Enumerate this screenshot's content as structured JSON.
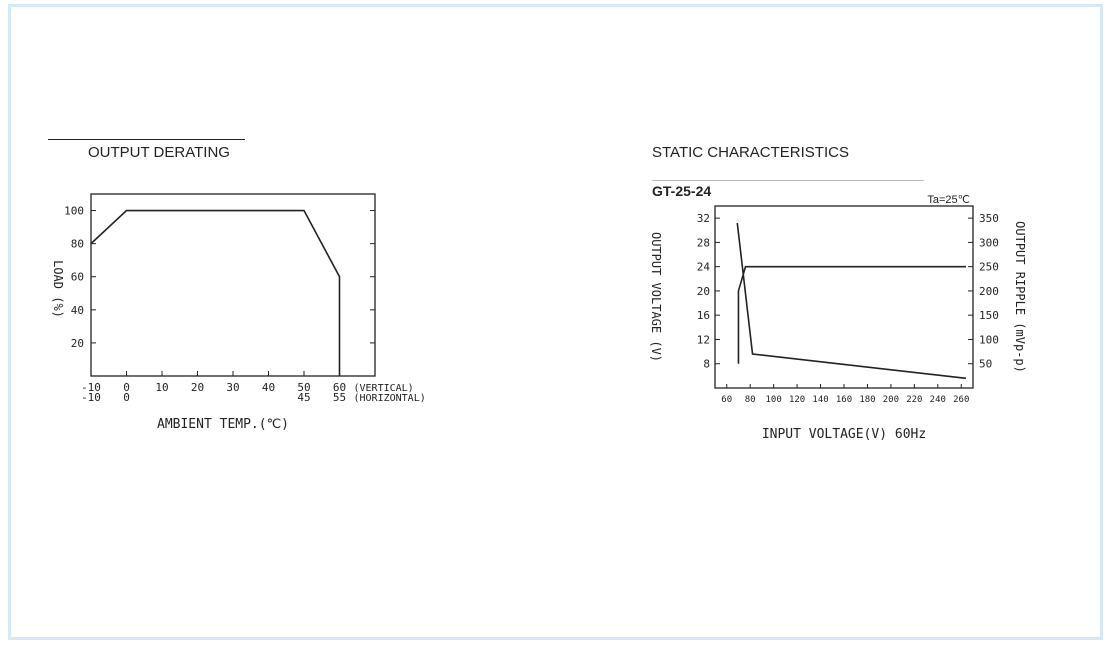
{
  "left_panel": {
    "title": "OUTPUT DERATING"
  },
  "right_panel": {
    "title": "STATIC CHARACTERISTICS",
    "model": "GT-25-24"
  },
  "chart_data": [
    {
      "type": "line",
      "title": "OUTPUT DERATING",
      "xlabel": "AMBIENT TEMP.(℃)",
      "ylabel": "LOAD (%)",
      "x_ticks": [
        "-10",
        "0",
        "10",
        "20",
        "30",
        "40",
        "50",
        "60"
      ],
      "x_ticks_horizontal": [
        "-10",
        "0",
        "45",
        "55"
      ],
      "x_tick_note_vertical": "(VERTICAL)",
      "x_tick_note_horizontal": "(HORIZONTAL)",
      "y_ticks": [
        "20",
        "40",
        "60",
        "80",
        "100"
      ],
      "xlim": [
        -10,
        70
      ],
      "ylim": [
        0,
        110
      ],
      "series": [
        {
          "x": [
            -10,
            0,
            50,
            60,
            60
          ],
          "y": [
            80,
            100,
            100,
            60,
            0
          ]
        }
      ]
    },
    {
      "type": "line",
      "title": "GT-25-24",
      "annotation": "Ta=25℃",
      "xlabel": "INPUT VOLTAGE(V) 60Hz",
      "ylabel_left": "OUTPUT VOLTAGE (V)",
      "ylabel_right": "OUTPUT RIPPLE (mVp-p)",
      "x_ticks": [
        "60",
        "80",
        "100",
        "120",
        "140",
        "160",
        "180",
        "200",
        "220",
        "240",
        "260"
      ],
      "y_left_ticks": [
        "8",
        "12",
        "16",
        "20",
        "24",
        "28",
        "32"
      ],
      "y_right_ticks": [
        "50",
        "100",
        "150",
        "200",
        "250",
        "300",
        "350"
      ],
      "xlim": [
        50,
        270
      ],
      "ylim_left": [
        4,
        34
      ],
      "ylim_right": [
        0,
        375
      ],
      "series": [
        {
          "axis": "left",
          "x": [
            70,
            70,
            76,
            264
          ],
          "y": [
            8,
            20,
            24,
            24
          ]
        },
        {
          "axis": "right",
          "x": [
            69,
            82,
            264
          ],
          "y": [
            340,
            70,
            20
          ]
        }
      ]
    }
  ]
}
